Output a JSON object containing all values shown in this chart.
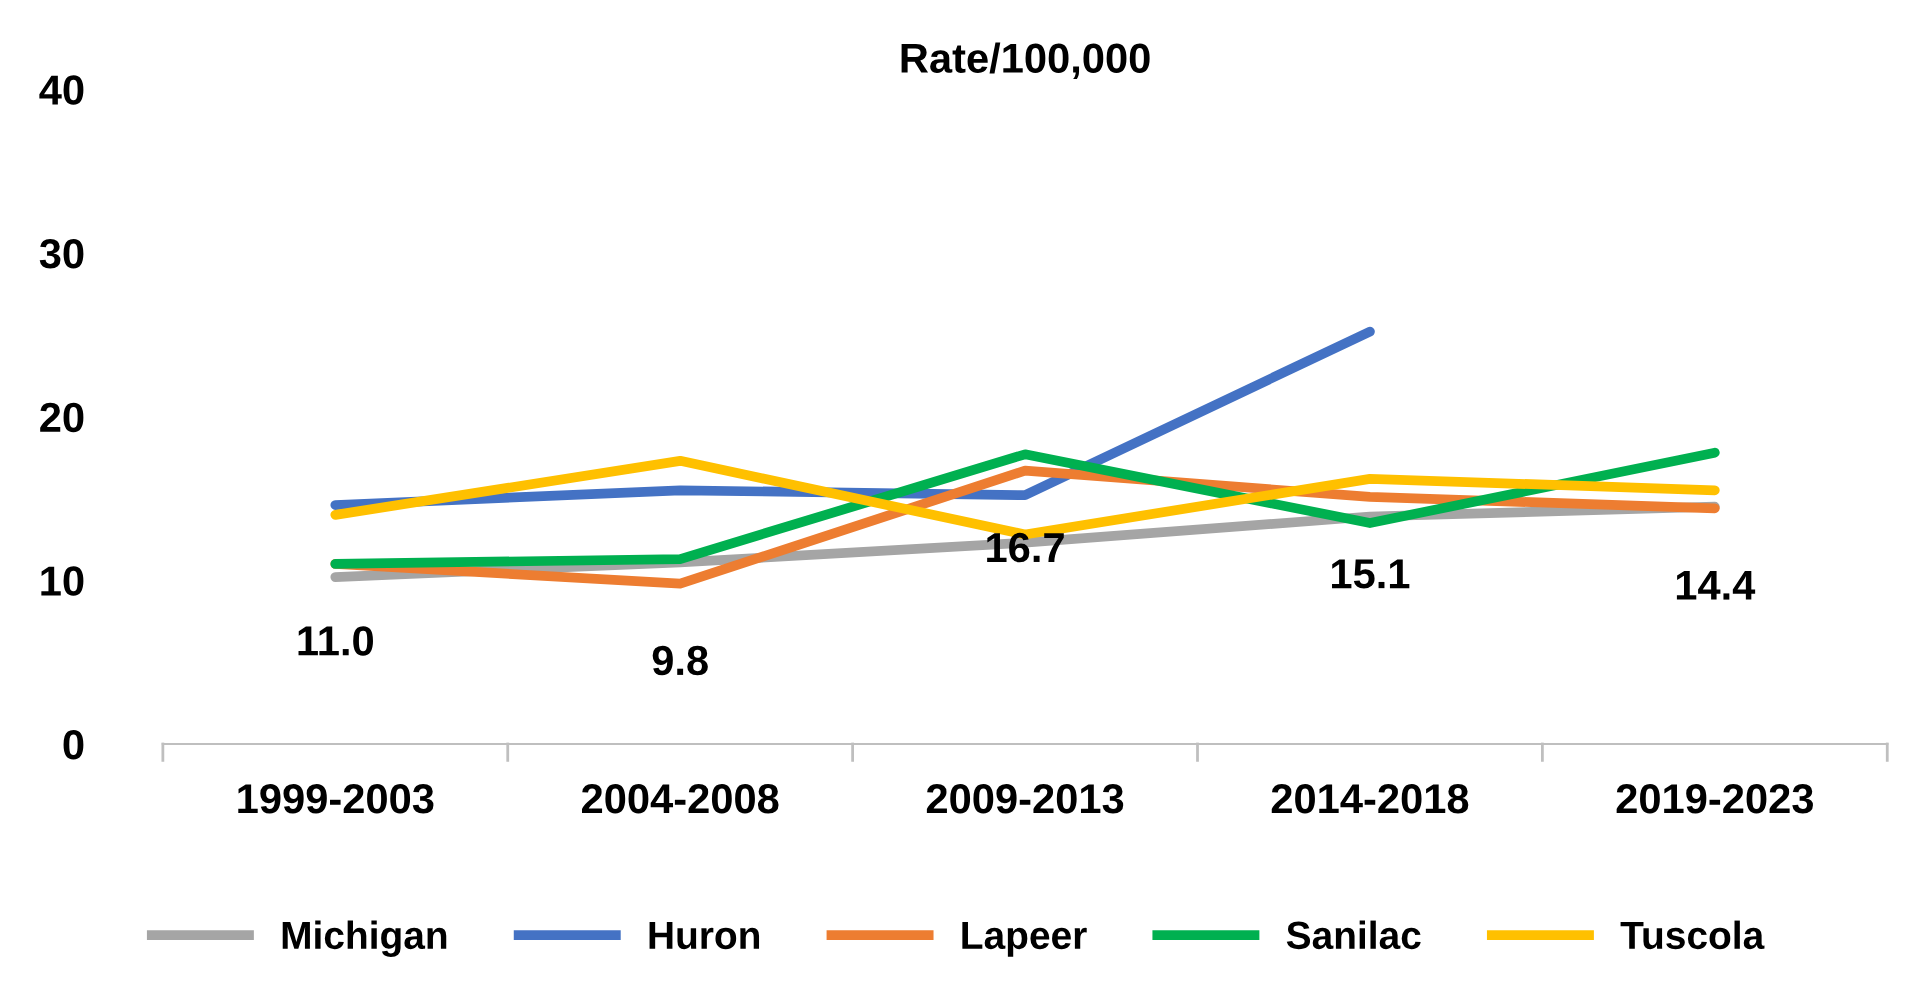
{
  "chart_data": {
    "type": "line",
    "title": "Rate/100,000",
    "categories": [
      "1999-2003",
      "2004-2008",
      "2009-2013",
      "2014-2018",
      "2019-2023"
    ],
    "series": [
      {
        "name": "Michigan",
        "color": "#a5a5a5",
        "values": [
          10.2,
          11.1,
          12.3,
          13.9,
          14.5
        ]
      },
      {
        "name": "Huron",
        "color": "#4472c4",
        "values": [
          14.6,
          15.5,
          15.2,
          25.2,
          null
        ]
      },
      {
        "name": "Lapeer",
        "color": "#ed7d31",
        "values": [
          11.0,
          9.8,
          16.7,
          15.1,
          14.4
        ],
        "value_labels": [
          "11.0",
          "9.8",
          "16.7",
          "15.1",
          "14.4"
        ]
      },
      {
        "name": "Sanilac",
        "color": "#00b050",
        "values": [
          11.0,
          11.3,
          17.7,
          13.5,
          17.8
        ]
      },
      {
        "name": "Tuscola",
        "color": "#ffc000",
        "values": [
          14.0,
          17.3,
          12.8,
          16.2,
          15.5
        ]
      }
    ],
    "ylim": [
      0,
      40
    ],
    "yticks": [
      0,
      10,
      20,
      30,
      40
    ],
    "grid": false,
    "legend": "bottom",
    "marker": "none",
    "line_style": "solid"
  }
}
